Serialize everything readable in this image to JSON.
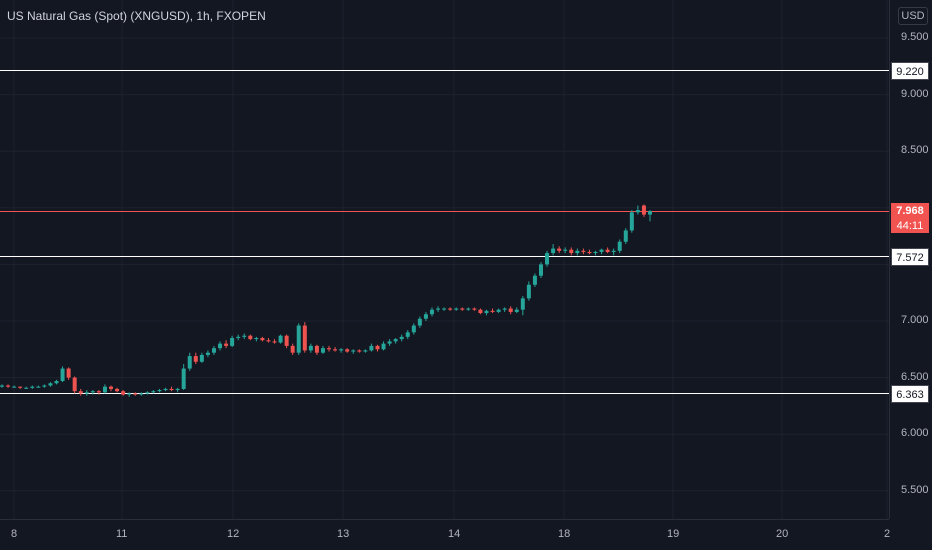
{
  "header": {
    "symbol_title": "US Natural Gas (Spot) (XNGUSD), 1h, FXOPEN"
  },
  "price_axis": {
    "currency": "USD",
    "ticks": [
      "9.500",
      "9.000",
      "8.500",
      "7.500",
      "7.000",
      "6.500",
      "6.000",
      "5.500"
    ],
    "tick_values": [
      9.5,
      9.0,
      8.5,
      7.5,
      7.0,
      6.5,
      6.0,
      5.5
    ]
  },
  "time_axis": {
    "labels": [
      "8",
      "11",
      "12",
      "13",
      "14",
      "18",
      "19",
      "20",
      "2"
    ]
  },
  "levels": [
    {
      "label": "9.220",
      "value": 9.22
    },
    {
      "label": "7.975",
      "value": 7.975
    },
    {
      "label": "7.572",
      "value": 7.572
    },
    {
      "label": "6.363",
      "value": 6.363
    }
  ],
  "current_price": {
    "label": "7.968",
    "value": 7.968,
    "countdown": "44:11"
  },
  "colors": {
    "up": "#26a69a",
    "down": "#ef5350",
    "level_line": "#ffffff",
    "price_line": "#f05350",
    "background": "#131722"
  },
  "chart_data": {
    "type": "candlestick",
    "title": "US Natural Gas (Spot) (XNGUSD), 1h, FXOPEN",
    "ylim": [
      5.3,
      9.75
    ],
    "x_axis_labels": [
      "8",
      "11",
      "12",
      "13",
      "14",
      "18",
      "19",
      "20",
      "2"
    ],
    "candles": [
      [
        6.42,
        6.44,
        6.41,
        6.43
      ],
      [
        6.43,
        6.44,
        6.41,
        6.42
      ],
      [
        6.42,
        6.43,
        6.41,
        6.42
      ],
      [
        6.42,
        6.42,
        6.4,
        6.41
      ],
      [
        6.41,
        6.42,
        6.4,
        6.41
      ],
      [
        6.41,
        6.43,
        6.4,
        6.42
      ],
      [
        6.42,
        6.43,
        6.41,
        6.42
      ],
      [
        6.42,
        6.44,
        6.41,
        6.43
      ],
      [
        6.43,
        6.46,
        6.42,
        6.45
      ],
      [
        6.45,
        6.48,
        6.44,
        6.47
      ],
      [
        6.47,
        6.6,
        6.46,
        6.58
      ],
      [
        6.58,
        6.59,
        6.48,
        6.5
      ],
      [
        6.5,
        6.51,
        6.36,
        6.38
      ],
      [
        6.38,
        6.4,
        6.34,
        6.36
      ],
      [
        6.36,
        6.39,
        6.34,
        6.37
      ],
      [
        6.37,
        6.39,
        6.35,
        6.38
      ],
      [
        6.38,
        6.39,
        6.35,
        6.37
      ],
      [
        6.37,
        6.44,
        6.36,
        6.42
      ],
      [
        6.42,
        6.43,
        6.38,
        6.4
      ],
      [
        6.4,
        6.41,
        6.37,
        6.38
      ],
      [
        6.38,
        6.39,
        6.34,
        6.35
      ],
      [
        6.35,
        6.37,
        6.33,
        6.36
      ],
      [
        6.36,
        6.37,
        6.34,
        6.35
      ],
      [
        6.35,
        6.37,
        6.34,
        6.36
      ],
      [
        6.36,
        6.38,
        6.35,
        6.37
      ],
      [
        6.37,
        6.39,
        6.36,
        6.38
      ],
      [
        6.38,
        6.4,
        6.37,
        6.39
      ],
      [
        6.39,
        6.41,
        6.38,
        6.4
      ],
      [
        6.4,
        6.42,
        6.38,
        6.39
      ],
      [
        6.39,
        6.41,
        6.37,
        6.4
      ],
      [
        6.4,
        6.62,
        6.39,
        6.58
      ],
      [
        6.58,
        6.72,
        6.56,
        6.69
      ],
      [
        6.69,
        6.72,
        6.62,
        6.64
      ],
      [
        6.64,
        6.72,
        6.63,
        6.7
      ],
      [
        6.7,
        6.74,
        6.68,
        6.72
      ],
      [
        6.72,
        6.78,
        6.7,
        6.76
      ],
      [
        6.76,
        6.82,
        6.74,
        6.8
      ],
      [
        6.8,
        6.83,
        6.76,
        6.78
      ],
      [
        6.78,
        6.87,
        6.77,
        6.85
      ],
      [
        6.85,
        6.88,
        6.83,
        6.86
      ],
      [
        6.86,
        6.89,
        6.84,
        6.87
      ],
      [
        6.87,
        6.88,
        6.83,
        6.84
      ],
      [
        6.84,
        6.86,
        6.82,
        6.85
      ],
      [
        6.85,
        6.86,
        6.82,
        6.83
      ],
      [
        6.83,
        6.85,
        6.81,
        6.82
      ],
      [
        6.82,
        6.84,
        6.8,
        6.81
      ],
      [
        6.81,
        6.88,
        6.8,
        6.87
      ],
      [
        6.87,
        6.88,
        6.76,
        6.78
      ],
      [
        6.78,
        6.8,
        6.7,
        6.72
      ],
      [
        6.72,
        6.98,
        6.7,
        6.96
      ],
      [
        6.96,
        6.99,
        6.72,
        6.74
      ],
      [
        6.74,
        6.8,
        6.72,
        6.78
      ],
      [
        6.78,
        6.79,
        6.7,
        6.72
      ],
      [
        6.72,
        6.78,
        6.71,
        6.76
      ],
      [
        6.76,
        6.78,
        6.73,
        6.75
      ],
      [
        6.75,
        6.77,
        6.73,
        6.74
      ],
      [
        6.74,
        6.76,
        6.72,
        6.75
      ],
      [
        6.75,
        6.76,
        6.72,
        6.73
      ],
      [
        6.73,
        6.75,
        6.71,
        6.74
      ],
      [
        6.74,
        6.75,
        6.72,
        6.73
      ],
      [
        6.73,
        6.75,
        6.72,
        6.74
      ],
      [
        6.74,
        6.8,
        6.73,
        6.78
      ],
      [
        6.78,
        6.79,
        6.73,
        6.75
      ],
      [
        6.75,
        6.82,
        6.74,
        6.8
      ],
      [
        6.8,
        6.84,
        6.78,
        6.82
      ],
      [
        6.82,
        6.85,
        6.8,
        6.84
      ],
      [
        6.84,
        6.88,
        6.82,
        6.86
      ],
      [
        6.86,
        6.92,
        6.84,
        6.9
      ],
      [
        6.9,
        6.98,
        6.88,
        6.96
      ],
      [
        6.96,
        7.04,
        6.94,
        7.02
      ],
      [
        7.02,
        7.08,
        7.0,
        7.06
      ],
      [
        7.06,
        7.12,
        7.04,
        7.1
      ],
      [
        7.1,
        7.13,
        7.08,
        7.11
      ],
      [
        7.11,
        7.12,
        7.09,
        7.11
      ],
      [
        7.11,
        7.12,
        7.09,
        7.1
      ],
      [
        7.1,
        7.12,
        7.09,
        7.11
      ],
      [
        7.11,
        7.12,
        7.09,
        7.1
      ],
      [
        7.1,
        7.12,
        7.09,
        7.11
      ],
      [
        7.11,
        7.12,
        7.09,
        7.1
      ],
      [
        7.1,
        7.11,
        7.06,
        7.07
      ],
      [
        7.07,
        7.1,
        7.05,
        7.09
      ],
      [
        7.09,
        7.11,
        7.07,
        7.08
      ],
      [
        7.08,
        7.11,
        7.07,
        7.1
      ],
      [
        7.1,
        7.12,
        7.08,
        7.11
      ],
      [
        7.11,
        7.13,
        7.06,
        7.08
      ],
      [
        7.08,
        7.12,
        7.07,
        7.1
      ],
      [
        7.1,
        7.22,
        7.05,
        7.2
      ],
      [
        7.2,
        7.35,
        7.18,
        7.32
      ],
      [
        7.32,
        7.42,
        7.3,
        7.4
      ],
      [
        7.4,
        7.52,
        7.38,
        7.5
      ],
      [
        7.5,
        7.62,
        7.48,
        7.6
      ],
      [
        7.6,
        7.68,
        7.58,
        7.64
      ],
      [
        7.64,
        7.66,
        7.6,
        7.62
      ],
      [
        7.62,
        7.65,
        7.6,
        7.63
      ],
      [
        7.63,
        7.65,
        7.58,
        7.6
      ],
      [
        7.6,
        7.64,
        7.58,
        7.62
      ],
      [
        7.62,
        7.64,
        7.59,
        7.61
      ],
      [
        7.61,
        7.63,
        7.59,
        7.6
      ],
      [
        7.6,
        7.62,
        7.58,
        7.61
      ],
      [
        7.61,
        7.64,
        7.59,
        7.63
      ],
      [
        7.63,
        7.65,
        7.6,
        7.61
      ],
      [
        7.61,
        7.64,
        7.58,
        7.62
      ],
      [
        7.62,
        7.72,
        7.6,
        7.7
      ],
      [
        7.7,
        7.82,
        7.68,
        7.8
      ],
      [
        7.8,
        7.98,
        7.78,
        7.96
      ],
      [
        7.96,
        8.02,
        7.94,
        7.98
      ],
      [
        8.02,
        8.03,
        7.92,
        7.94
      ],
      [
        7.94,
        7.98,
        7.88,
        7.97
      ]
    ]
  }
}
